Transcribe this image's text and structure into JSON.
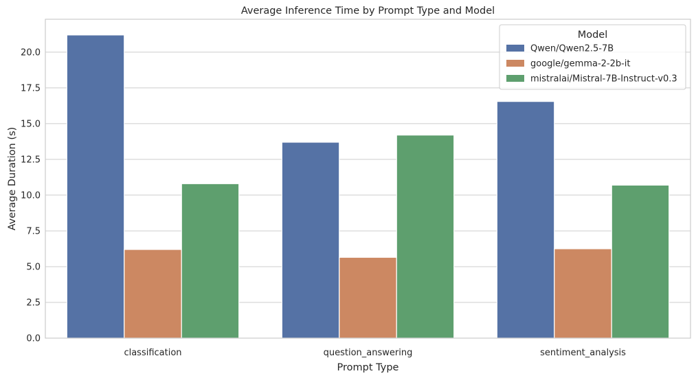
{
  "chart_data": {
    "type": "bar",
    "title": "Average Inference Time by Prompt Type and Model",
    "xlabel": "Prompt Type",
    "ylabel": "Average Duration (s)",
    "categories": [
      "classification",
      "question_answering",
      "sentiment_analysis"
    ],
    "ylim": [
      0,
      22.3
    ],
    "yticks": [
      0.0,
      2.5,
      5.0,
      7.5,
      10.0,
      12.5,
      15.0,
      17.5,
      20.0
    ],
    "ytick_labels": [
      "0.0",
      "2.5",
      "5.0",
      "7.5",
      "10.0",
      "12.5",
      "15.0",
      "17.5",
      "20.0"
    ],
    "grid": true,
    "legend": {
      "title": "Model",
      "placement": "top-right"
    },
    "series": [
      {
        "name": "Qwen/Qwen2.5-7B",
        "color": "#5572a5",
        "values": [
          21.2,
          13.7,
          16.55
        ]
      },
      {
        "name": "google/gemma-2-2b-it",
        "color": "#cc8862",
        "values": [
          6.2,
          5.65,
          6.25
        ]
      },
      {
        "name": "mistralai/Mistral-7B-Instruct-v0.3",
        "color": "#5e9f6e",
        "values": [
          10.8,
          14.2,
          10.7
        ]
      }
    ]
  }
}
